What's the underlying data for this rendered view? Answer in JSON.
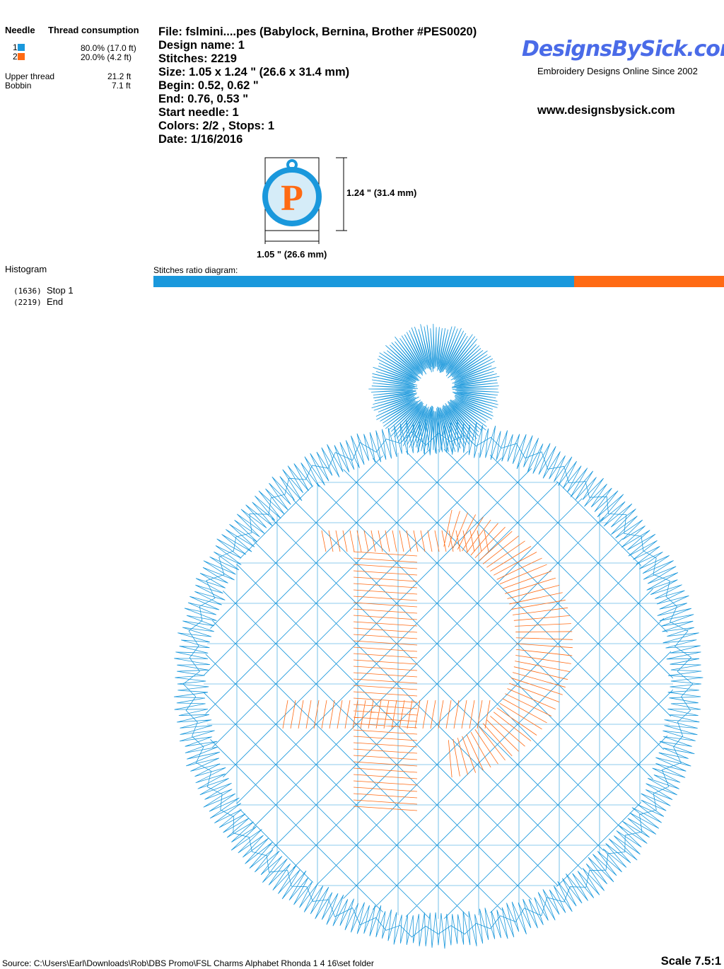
{
  "thread_table": {
    "needle_header": "Needle",
    "consumption_header": "Thread consumption",
    "needles": [
      {
        "number": "1",
        "color": "#1a98dc",
        "consumption": "80.0% (17.0 ft)"
      },
      {
        "number": "2",
        "color": "#ff6a13",
        "consumption": "20.0% (4.2 ft)"
      }
    ],
    "upper_thread_label": "Upper thread",
    "upper_thread_value": "21.2 ft",
    "bobbin_label": "Bobbin",
    "bobbin_value": "7.1 ft"
  },
  "design_info": {
    "file": "File: fslmini....pes  (Babylock, Bernina, Brother #PES0020)",
    "design_name": "Design name: 1",
    "stitches": "Stitches: 2219",
    "size": "Size: 1.05 x 1.24 \" (26.6 x 31.4 mm)",
    "begin": "Begin: 0.52, 0.62 \"",
    "end": "End: 0.76, 0.53 \"",
    "start_needle": "Start needle: 1",
    "colors_stops": "Colors: 2/2 , Stops: 1",
    "date": "Date: 1/16/2016"
  },
  "logo": {
    "name": "DesignsBySick.com",
    "tagline": "Embroidery Designs Online Since 2002",
    "url": "www.designsbysick.com"
  },
  "thumbnail": {
    "height_label": "1.24 \" (31.4 mm)",
    "width_label": "1.05 \" (26.6 mm)",
    "letter": "P"
  },
  "histogram": {
    "title": "Histogram",
    "entries": [
      {
        "count": "(1636)",
        "label": "Stop 1"
      },
      {
        "count": "(2219)",
        "label": "End"
      }
    ]
  },
  "ratio_diagram": {
    "label": "Stitches ratio diagram:",
    "segments": [
      {
        "color": "#1a98dc",
        "stitches": 1636
      },
      {
        "color": "#ff6a13",
        "stitches": 583
      }
    ]
  },
  "footer": {
    "source": "Source: C:\\Users\\Earl\\Downloads\\Rob\\DBS Promo\\FSL Charms Alphabet Rhonda 1 4 16\\set folder",
    "scale": "Scale 7.5:1"
  }
}
